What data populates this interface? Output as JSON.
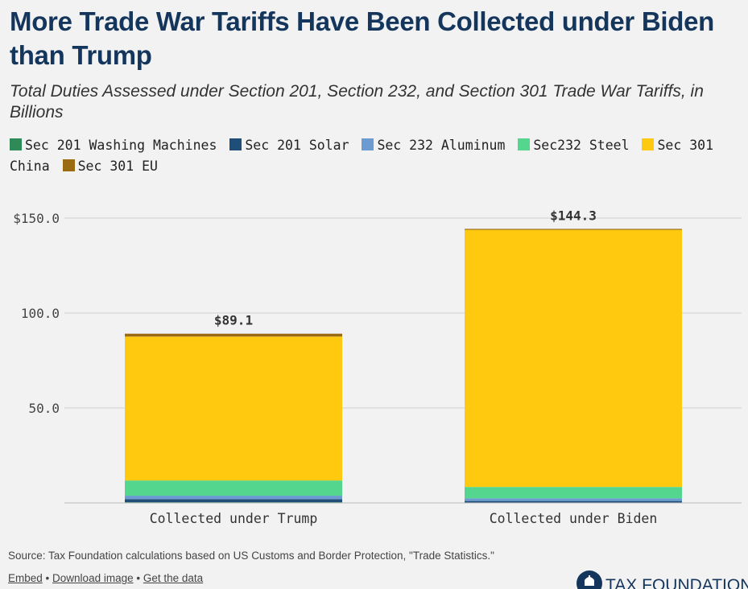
{
  "header": {
    "title": "More Trade War Tariffs Have Been Collected under Biden than Trump",
    "subtitle": "Total Duties Assessed under Section 201, Section 232, and Section 301 Trade War Tariffs, in Billions"
  },
  "legend": [
    {
      "label": "Sec 201 Washing Machines",
      "color": "#2e8b57"
    },
    {
      "label": "Sec 201 Solar",
      "color": "#1f4e79"
    },
    {
      "label": "Sec 232 Aluminum",
      "color": "#6b9bd1"
    },
    {
      "label": "Sec232 Steel",
      "color": "#55d68f"
    },
    {
      "label": "Sec 301 China",
      "color": "#ffc90f"
    },
    {
      "label": "Sec 301 EU",
      "color": "#9a6b12"
    }
  ],
  "chart_data": {
    "type": "bar",
    "stacked": true,
    "categories": [
      "Collected under Trump",
      "Collected under Biden"
    ],
    "series": [
      {
        "name": "Sec 201 Washing Machines",
        "values": [
          0.4,
          0.1
        ]
      },
      {
        "name": "Sec 201 Solar",
        "values": [
          1.6,
          0.9
        ]
      },
      {
        "name": "Sec 232 Aluminum",
        "values": [
          1.8,
          1.4
        ]
      },
      {
        "name": "Sec232 Steel",
        "values": [
          8.0,
          6.0
        ]
      },
      {
        "name": "Sec 301 China",
        "values": [
          75.8,
          135.4
        ]
      },
      {
        "name": "Sec 301 EU",
        "values": [
          1.5,
          0.5
        ]
      }
    ],
    "totals": [
      89.1,
      144.3
    ],
    "total_labels": [
      "$89.1",
      "$144.3"
    ],
    "yticks": [
      {
        "value": 50,
        "label": "50.0"
      },
      {
        "value": 100,
        "label": "100.0"
      },
      {
        "value": 150,
        "label": "$150.0"
      }
    ],
    "ylim": [
      0,
      150
    ],
    "grid": true,
    "legend_position": "top"
  },
  "footer": {
    "source": "Source: Tax Foundation calculations based on US Customs and Border Protection, \"Trade Statistics.\"",
    "links": [
      "Embed",
      "Download image",
      "Get the data"
    ],
    "separator": "•",
    "logo_text": "TAX FOUNDATION"
  }
}
